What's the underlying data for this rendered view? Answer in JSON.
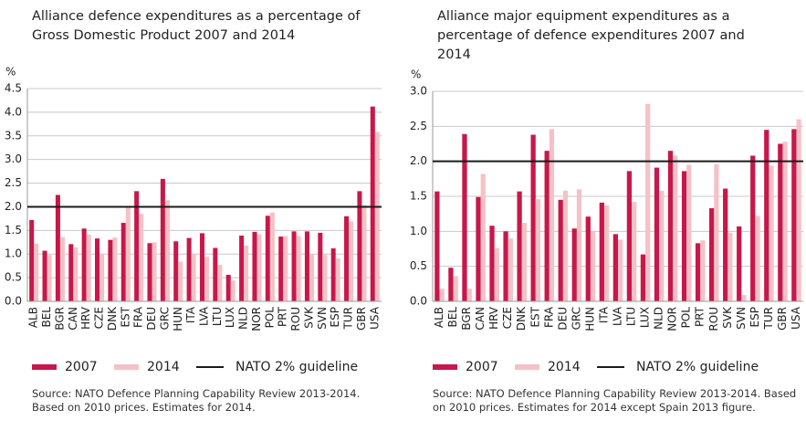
{
  "chart_data": [
    {
      "type": "bar",
      "title": "Alliance defence expenditures as a percentage of Gross Domestic Product 2007 and 2014",
      "y_label": "%",
      "categories": [
        "ALB",
        "BEL",
        "BGR",
        "CAN",
        "HRV",
        "CZE",
        "DNK",
        "EST",
        "FRA",
        "DEU",
        "GRC",
        "HUN",
        "ITA",
        "LVA",
        "LTU",
        "LUX",
        "NLD",
        "NOR",
        "POL",
        "PRT",
        "ROU",
        "SVK",
        "SVN",
        "ESP",
        "TUR",
        "GBR",
        "USA"
      ],
      "series": [
        {
          "name": "2007",
          "color": "#c8174a",
          "values": [
            1.72,
            1.07,
            2.25,
            1.21,
            1.54,
            1.33,
            1.3,
            1.66,
            2.33,
            1.23,
            2.59,
            1.27,
            1.34,
            1.44,
            1.13,
            0.56,
            1.39,
            1.47,
            1.81,
            1.37,
            1.48,
            1.48,
            1.45,
            1.12,
            1.8,
            2.33,
            4.12
          ]
        },
        {
          "name": "2014",
          "color": "#f4c2c6",
          "values": [
            1.22,
            0.98,
            1.36,
            1.14,
            1.41,
            1.01,
            1.35,
            2.0,
            1.85,
            1.25,
            2.14,
            0.84,
            1.01,
            0.94,
            0.77,
            0.44,
            1.18,
            1.42,
            1.88,
            1.38,
            1.38,
            1.01,
            0.98,
            0.91,
            1.69,
            2.03,
            3.58
          ]
        }
      ],
      "guideline": {
        "name": "NATO 2% guideline",
        "value": 2,
        "color": "#1a1a1a"
      },
      "ylim": [
        0,
        4.5
      ],
      "yticks": [
        {
          "value": 0,
          "label": "0.0"
        },
        {
          "value": 0.5,
          "label": "0.5"
        },
        {
          "value": 1,
          "label": "1.0"
        },
        {
          "value": 1.5,
          "label": "1.5"
        },
        {
          "value": 2,
          "label": "2.0"
        },
        {
          "value": 2.5,
          "label": "2.5"
        },
        {
          "value": 3,
          "label": "3.0"
        },
        {
          "value": 3.5,
          "label": "3.5"
        },
        {
          "value": 4,
          "label": "4.0"
        },
        {
          "value": 4.5,
          "label": "4.5"
        }
      ],
      "grid": true,
      "source": "Source: NATO Defence Planning Capability Review 2013-2014. Based on 2010 prices. Estimates for 2014."
    },
    {
      "type": "bar",
      "title": "Alliance major equipment expenditures as a percentage of defence expenditures 2007 and 2014",
      "y_label": "%",
      "categories": [
        "ALB",
        "BEL",
        "BGR",
        "CAN",
        "HRV",
        "CZE",
        "DNK",
        "EST",
        "FRA",
        "DEU",
        "GRC",
        "HUN",
        "ITA",
        "LVA",
        "LTU",
        "LUX",
        "NLD",
        "NOR",
        "POL",
        "PRT",
        "ROU",
        "SVK",
        "SVN",
        "ESP",
        "TUR",
        "GBR",
        "USA"
      ],
      "series": [
        {
          "name": "2007",
          "color": "#c8174a",
          "values": [
            1.57,
            0.48,
            2.39,
            1.49,
            1.08,
            1.0,
            1.57,
            2.38,
            2.15,
            1.45,
            1.04,
            1.21,
            1.41,
            0.96,
            1.86,
            0.67,
            1.91,
            2.15,
            1.86,
            0.83,
            1.33,
            1.61,
            1.07,
            2.08,
            2.45,
            2.25,
            2.46
          ]
        },
        {
          "name": "2014",
          "color": "#f4c2c6",
          "values": [
            0.18,
            0.36,
            0.18,
            1.82,
            0.76,
            0.9,
            1.12,
            1.46,
            2.46,
            1.58,
            1.6,
            1.0,
            1.37,
            0.88,
            1.42,
            2.82,
            1.58,
            2.08,
            1.95,
            0.87,
            1.96,
            0.98,
            0.09,
            1.22,
            1.94,
            2.28,
            2.6
          ]
        }
      ],
      "guideline": {
        "name": "NATO 2% guideline",
        "value": 2,
        "color": "#1a1a1a"
      },
      "ylim": [
        0,
        3
      ],
      "yticks": [
        {
          "value": 0,
          "label": "0.0"
        },
        {
          "value": 0.5,
          "label": "0.5"
        },
        {
          "value": 1,
          "label": "1.0"
        },
        {
          "value": 1.5,
          "label": "1.5"
        },
        {
          "value": 2,
          "label": "2.0"
        },
        {
          "value": 2.5,
          "label": "2.5"
        },
        {
          "value": 3,
          "label": "3.0"
        }
      ],
      "grid": true,
      "source": "Source: NATO Defence Planning Capability Review 2013-2014. Based on 2010 prices. Estimates for 2014 except Spain 2013 figure."
    }
  ]
}
